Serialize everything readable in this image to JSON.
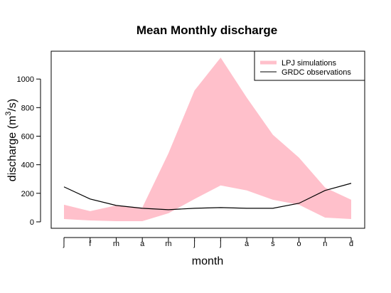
{
  "chart_data": {
    "type": "area",
    "title": "Mean Monthly discharge",
    "xlabel": "month",
    "ylabel": "discharge (m",
    "ylabel_superscript": "3",
    "ylabel_suffix": "/s)",
    "categories": [
      "j",
      "f",
      "m",
      "a",
      "m",
      "j",
      "j",
      "a",
      "s",
      "o",
      "n",
      "d"
    ],
    "ylim": [
      -45,
      1195
    ],
    "yticks": [
      0,
      200,
      400,
      600,
      800,
      1000
    ],
    "legend_position": "top-right",
    "grid": false,
    "series": [
      {
        "name": "LPJ simulations",
        "kind": "band",
        "color": "#ffc0cb",
        "upper": [
          120,
          75,
          115,
          100,
          480,
          920,
          1150,
          870,
          610,
          450,
          240,
          155
        ],
        "lower": [
          20,
          10,
          5,
          5,
          60,
          160,
          255,
          220,
          155,
          120,
          30,
          20
        ]
      },
      {
        "name": "GRDC observations",
        "kind": "line",
        "color": "#000000",
        "values": [
          245,
          160,
          115,
          95,
          85,
          95,
          100,
          95,
          95,
          130,
          220,
          270
        ]
      }
    ]
  }
}
